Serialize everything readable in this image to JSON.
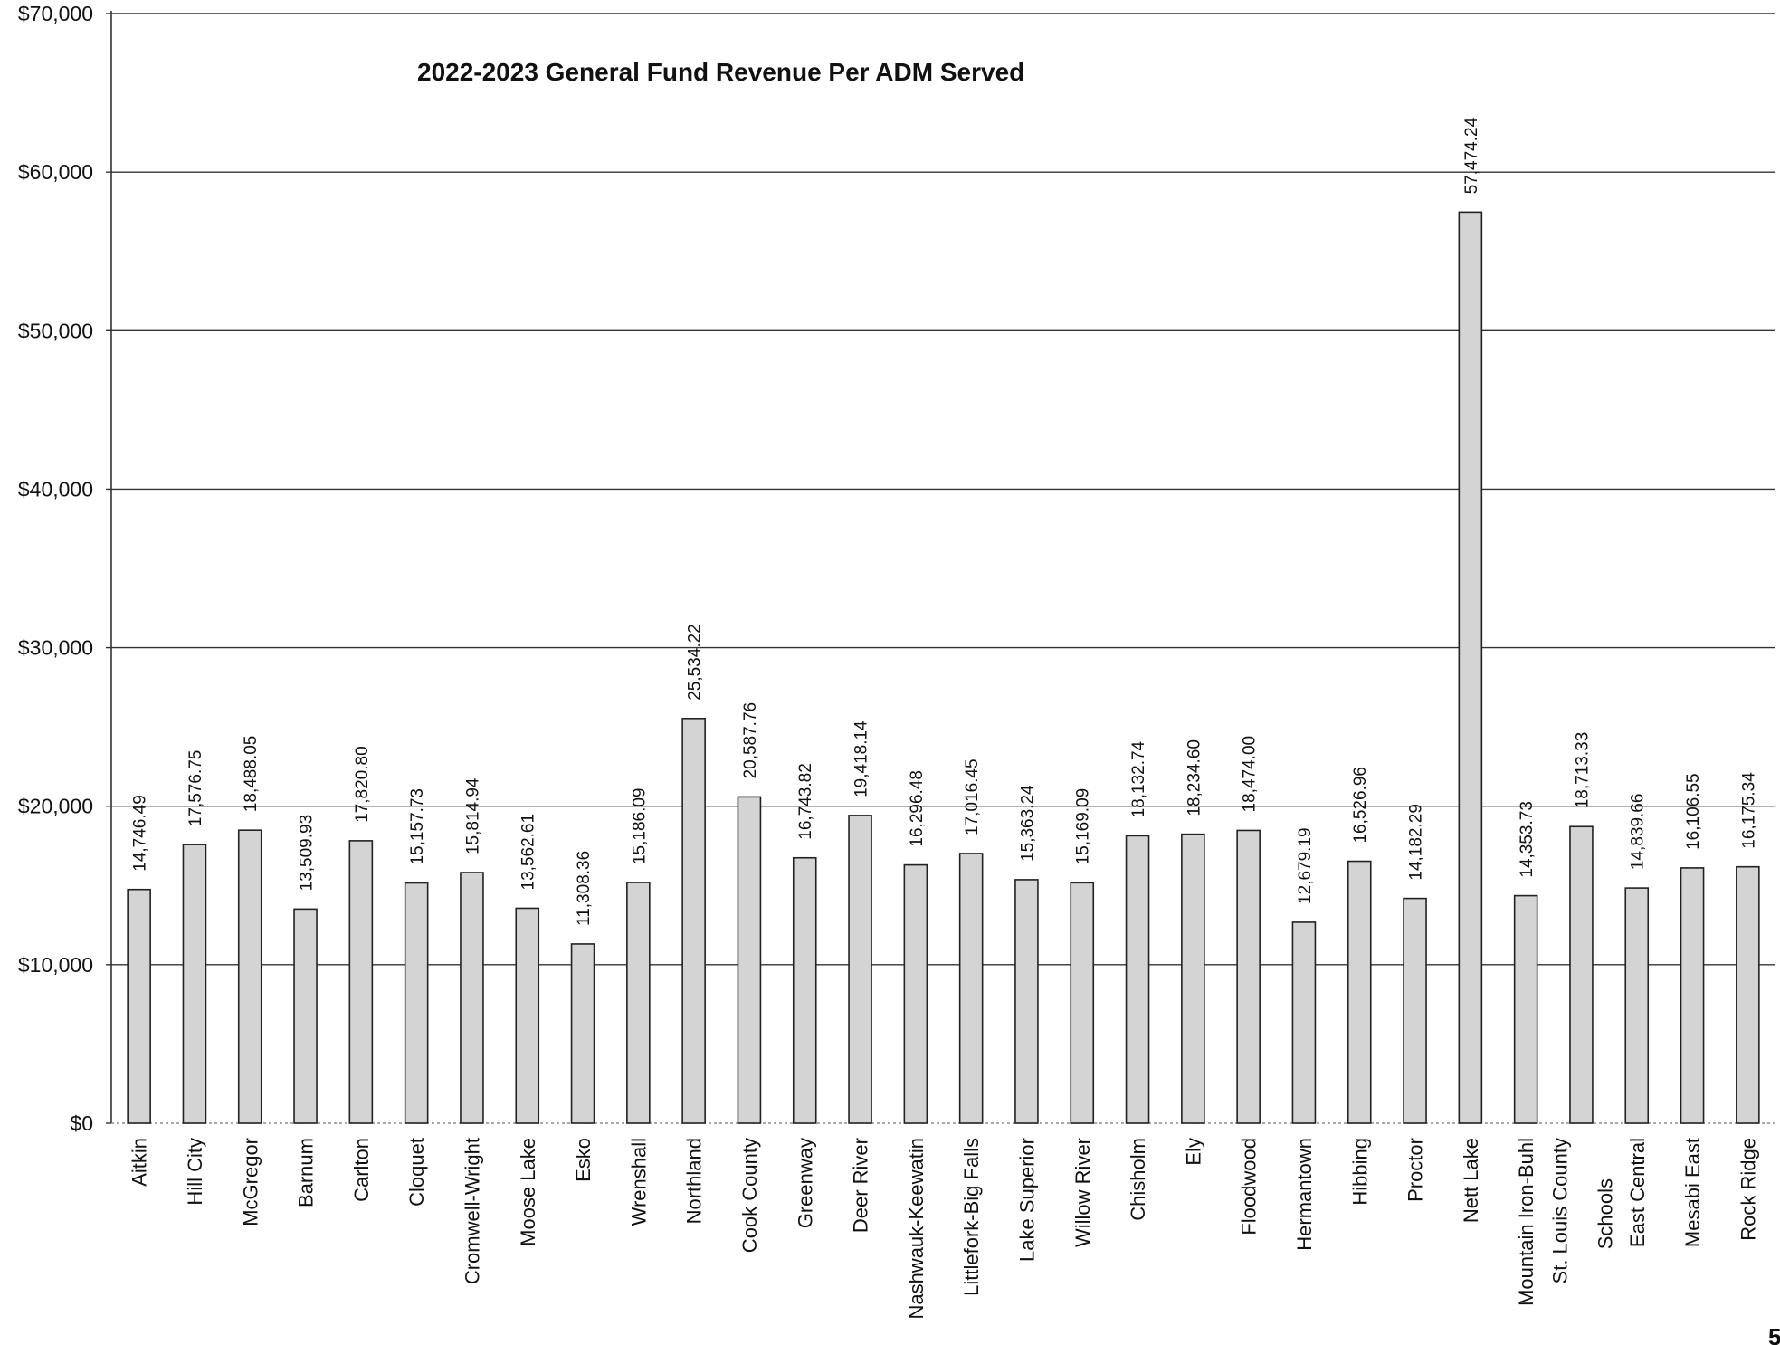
{
  "chart_data": {
    "type": "bar",
    "title": "2022-2023 General Fund Revenue Per ADM Served",
    "xlabel": "",
    "ylabel": "",
    "ylim": [
      0,
      70000
    ],
    "yticks": [
      "$0",
      "$10,000",
      "$20,000",
      "$30,000",
      "$40,000",
      "$50,000",
      "$60,000",
      "$70,000"
    ],
    "grid": true,
    "categories": [
      "Aitkin",
      "Hill City",
      "McGregor",
      "Barnum",
      "Carlton",
      "Cloquet",
      "Cromwell-Wright",
      "Moose Lake",
      "Esko",
      "Wrenshall",
      "Northland",
      "Cook County",
      "Greenway",
      "Deer River",
      "Nashwauk-Keewatin",
      "Littlefork-Big Falls",
      "Lake Superior",
      "Willow River",
      "Chisholm",
      "Ely",
      "Floodwood",
      "Hermantown",
      "Hibbing",
      "Proctor",
      "Nett Lake",
      "Mountain Iron-Buhl",
      "St. Louis County Schools",
      "East Central",
      "Mesabi East",
      "Rock Ridge"
    ],
    "values": [
      14746.49,
      17576.75,
      18488.05,
      13509.93,
      17820.8,
      15157.73,
      15814.94,
      13562.61,
      11308.36,
      15186.09,
      25534.22,
      20587.76,
      16743.82,
      19418.14,
      16296.48,
      17016.45,
      15363.24,
      15169.09,
      18132.74,
      18234.6,
      18474.0,
      12679.19,
      16526.96,
      14182.29,
      57474.24,
      14353.73,
      18713.33,
      14839.66,
      16106.55,
      16175.34
    ],
    "data_labels": [
      "14,746.49",
      "17,576.75",
      "18,488.05",
      "13,509.93",
      "17,820.80",
      "15,157.73",
      "15,814.94",
      "13,562.61",
      "11,308.36",
      "15,186.09",
      "25,534.22",
      "20,587.76",
      "16,743.82",
      "19,418.14",
      "16,296.48",
      "17,016.45",
      "15,363.24",
      "15,169.09",
      "18,132.74",
      "18,234.60",
      "18,474.00",
      "12,679.19",
      "16,526.96",
      "14,182.29",
      "57,474.24",
      "14,353.73",
      "18,713.33",
      "14,839.66",
      "16,106.55",
      "16,175.34"
    ],
    "bar_color": "#d4d4d4"
  },
  "page_number": "5"
}
